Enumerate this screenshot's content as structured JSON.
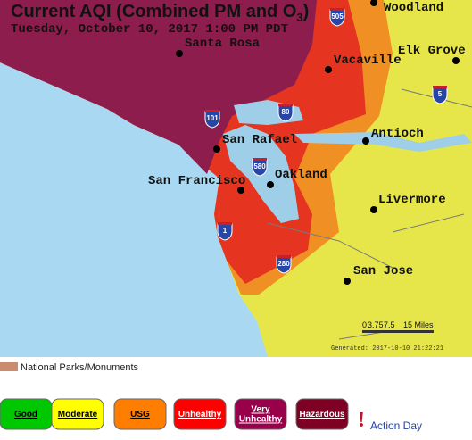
{
  "header": {
    "title": "Current AQI (Combined PM and O",
    "title_subscript": "3",
    "title_end": ")",
    "subtitle": "Tuesday, October 10, 2017 1:00 PM PDT"
  },
  "cities": [
    "Woodland",
    "Elk Grove",
    "Santa Rosa",
    "Vacaville",
    "San Rafael",
    "Antioch",
    "Oakland",
    "San Francisco",
    "Livermore",
    "San Jose"
  ],
  "highways": [
    "505",
    "5",
    "80",
    "101",
    "580",
    "1",
    "280"
  ],
  "scale": {
    "labels": [
      "0",
      "3.75",
      "7.5",
      "15 Miles"
    ]
  },
  "generated": "Generated: 2017-10-10 21:22:21",
  "legend": {
    "parks": "National Parks/Monuments",
    "levels": [
      [
        "Good"
      ],
      [
        "Moderate"
      ],
      [
        "USG"
      ],
      [
        "Unhealthy"
      ],
      [
        "Very",
        "Unhealthy"
      ],
      [
        "Hazardous"
      ]
    ],
    "action_mark": "!",
    "action_day": "Action Day"
  }
}
